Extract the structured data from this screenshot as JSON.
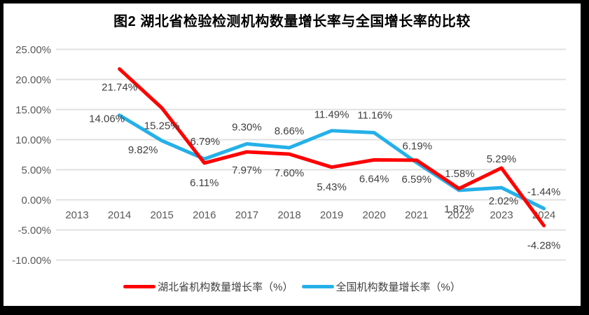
{
  "frame": {
    "border_color": "#000000",
    "canvas_background": "#ffffff"
  },
  "colors": {
    "gridline": "#e0e0e0",
    "axis_text": "#595959",
    "data_label_text": "#404040",
    "title_text": "#000000",
    "legend_text": "#404040"
  },
  "chart_data": {
    "type": "line",
    "title": "图2 湖北省检验检测机构数量增长率与全国增长率的比较",
    "categories": [
      "2013",
      "2014",
      "2015",
      "2016",
      "2017",
      "2018",
      "2019",
      "2020",
      "2021",
      "2022",
      "2023",
      "2024"
    ],
    "series": [
      {
        "name": "湖北省机构数量增长率（%）",
        "color": "#fe0000",
        "values": [
          null,
          21.74,
          15.25,
          6.11,
          7.97,
          7.6,
          5.43,
          6.64,
          6.59,
          1.87,
          5.29,
          -4.28
        ],
        "labels": [
          null,
          "21.74%",
          "15.25%",
          "6.11%",
          "7.97%",
          "7.60%",
          "5.43%",
          "6.64%",
          "6.59%",
          "1.87%",
          "5.29%",
          "-4.28%"
        ]
      },
      {
        "name": "全国机构数量增长率（%）",
        "color": "#25b0e8",
        "values": [
          null,
          14.06,
          9.82,
          6.79,
          9.3,
          8.66,
          11.49,
          11.16,
          6.19,
          1.58,
          2.02,
          -1.44
        ],
        "labels": [
          null,
          "14.06%",
          "9.82%",
          "6.79%",
          "9.30%",
          "8.66%",
          "11.49%",
          "11.16%",
          "6.19%",
          "1.58%",
          "2.02%",
          "-1.44%"
        ]
      }
    ],
    "y_axis": {
      "ticks": [
        {
          "value": 25,
          "label": "25.00%"
        },
        {
          "value": 20,
          "label": "20.00%"
        },
        {
          "value": 15,
          "label": "15.00%"
        },
        {
          "value": 10,
          "label": "10.00%"
        },
        {
          "value": 5,
          "label": "5.00%"
        },
        {
          "value": 0,
          "label": "0.00%"
        },
        {
          "value": -5,
          "label": "-5.00%"
        },
        {
          "value": -10,
          "label": "-10.00%"
        }
      ]
    },
    "ylim": [
      -10,
      25
    ],
    "grid": true,
    "legend_position": "bottom",
    "label_offsets": [
      [
        null,
        [
          0,
          26
        ],
        [
          0,
          25
        ],
        [
          0,
          28
        ],
        [
          0,
          26
        ],
        [
          0,
          27
        ],
        [
          0,
          28
        ],
        [
          0,
          27
        ],
        [
          0,
          27
        ],
        [
          0,
          29
        ],
        [
          0,
          -13
        ],
        [
          0,
          28
        ]
      ],
      [
        null,
        [
          -18,
          5
        ],
        [
          -27,
          13
        ],
        [
          1,
          -25
        ],
        [
          0,
          -24
        ],
        [
          0,
          -24
        ],
        [
          0,
          -23
        ],
        [
          1,
          -25
        ],
        [
          1,
          -24
        ],
        [
          1,
          -24
        ],
        [
          3,
          19
        ],
        [
          0,
          -24
        ]
      ]
    ]
  }
}
